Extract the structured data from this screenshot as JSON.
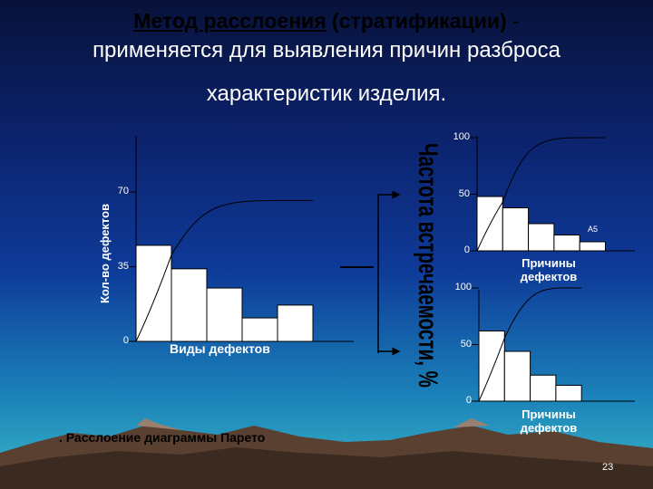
{
  "title": {
    "part1": "Метод  расслоения",
    "part2": " (стратификации)",
    "part3": " -",
    "line2": "применяется для выявления причин разброса",
    "line3": "характеристик изделия."
  },
  "caption": ". Расслоение диаграммы Парето",
  "vertical_label": "Частота встречаемости, %",
  "page_number": "23",
  "colors": {
    "bar": "#ffffff",
    "curve": "#000000"
  },
  "chart_data": [
    {
      "type": "bar",
      "title": "",
      "xlabel": "Виды дефектов",
      "ylabel": "Кол-во дефектов",
      "yticks": [
        "0",
        "35",
        "70"
      ],
      "ylim": [
        0,
        70
      ],
      "values": [
        45,
        34,
        25,
        11,
        17
      ],
      "cumulative_curve_end": 66
    },
    {
      "type": "bar",
      "title": "",
      "xlabel": "Причины дефектов",
      "ylabel": "",
      "yticks": [
        "0",
        "50",
        "100"
      ],
      "ylim": [
        0,
        100
      ],
      "values": [
        48,
        38,
        24,
        14,
        8
      ],
      "annotation": "A5",
      "cumulative_curve_end": 100
    },
    {
      "type": "bar",
      "title": "",
      "xlabel": "Причины дефектов",
      "ylabel": "",
      "yticks": [
        "0",
        "50",
        "100"
      ],
      "ylim": [
        0,
        100
      ],
      "values": [
        62,
        44,
        23,
        14
      ],
      "cumulative_curve_end": 100
    }
  ]
}
